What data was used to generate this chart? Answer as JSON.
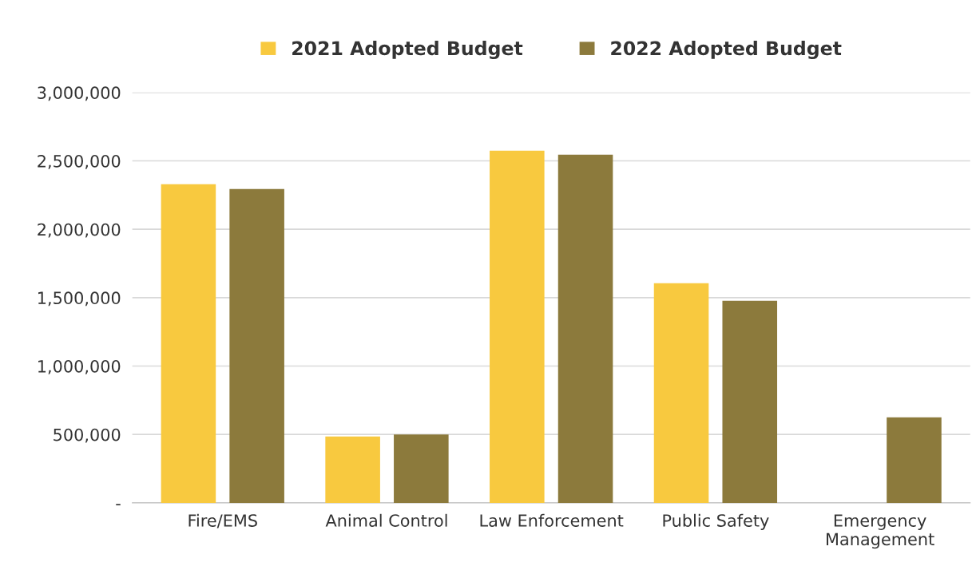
{
  "chart_data": {
    "type": "bar",
    "categories": [
      "Fire/EMS",
      "Animal Control",
      "Law Enforcement",
      "Public Safety",
      "Emergency\nManagement"
    ],
    "series": [
      {
        "name": "2021 Adopted Budget",
        "color": "#f8c93f",
        "values": [
          2330000,
          485000,
          2575000,
          1605000,
          null
        ]
      },
      {
        "name": "2022 Adopted Budget",
        "color": "#8c7a3c",
        "values": [
          2295000,
          500000,
          2545000,
          1477000,
          625000
        ]
      }
    ],
    "ylim": [
      0,
      3000000
    ],
    "yticks": [
      {
        "value": 0,
        "label": "-"
      },
      {
        "value": 500000,
        "label": "500,000"
      },
      {
        "value": 1000000,
        "label": "1,000,000"
      },
      {
        "value": 1500000,
        "label": "1,500,000"
      },
      {
        "value": 2000000,
        "label": "2,000,000"
      },
      {
        "value": 2500000,
        "label": "2,500,000"
      },
      {
        "value": 3000000,
        "label": "3,000,000"
      }
    ],
    "grid": "y",
    "legend": "top"
  }
}
